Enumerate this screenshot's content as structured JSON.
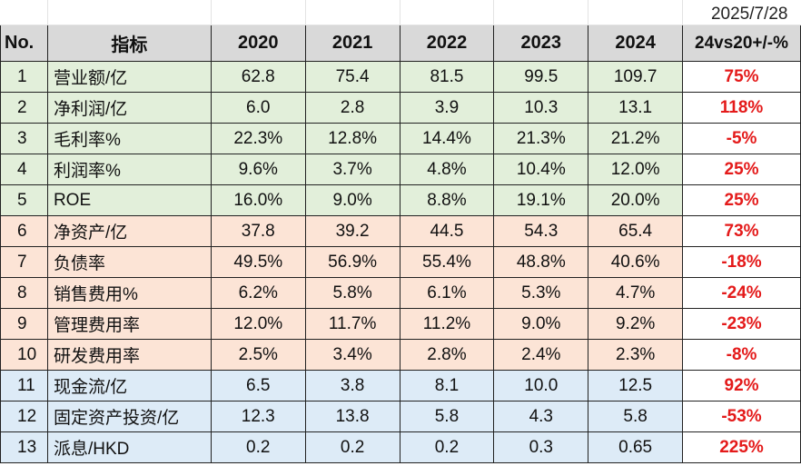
{
  "date": "2025/7/28",
  "header": {
    "no": "No.",
    "metric": "指标",
    "years": [
      "2020",
      "2021",
      "2022",
      "2023",
      "2024"
    ],
    "change": "24vs20+/-%"
  },
  "rows": [
    {
      "no": "1",
      "name": "营业额/亿",
      "values": [
        "62.8",
        "75.4",
        "81.5",
        "99.5",
        "109.7"
      ],
      "change": "75%",
      "group": "green"
    },
    {
      "no": "2",
      "name": "净利润/亿",
      "values": [
        "6.0",
        "2.8",
        "3.9",
        "10.3",
        "13.1"
      ],
      "change": "118%",
      "group": "green"
    },
    {
      "no": "3",
      "name": "毛利率%",
      "values": [
        "22.3%",
        "12.8%",
        "14.4%",
        "21.3%",
        "21.2%"
      ],
      "change": "-5%",
      "group": "green"
    },
    {
      "no": "4",
      "name": "利润率%",
      "values": [
        "9.6%",
        "3.7%",
        "4.8%",
        "10.4%",
        "12.0%"
      ],
      "change": "25%",
      "group": "green"
    },
    {
      "no": "5",
      "name": "ROE",
      "values": [
        "16.0%",
        "9.0%",
        "8.8%",
        "19.1%",
        "20.0%"
      ],
      "change": "25%",
      "group": "green"
    },
    {
      "no": "6",
      "name": "净资产/亿",
      "values": [
        "37.8",
        "39.2",
        "44.5",
        "54.3",
        "65.4"
      ],
      "change": "73%",
      "group": "peach"
    },
    {
      "no": "7",
      "name": "负债率",
      "values": [
        "49.5%",
        "56.9%",
        "55.4%",
        "48.8%",
        "40.6%"
      ],
      "change": "-18%",
      "group": "peach"
    },
    {
      "no": "8",
      "name": "销售费用%",
      "values": [
        "6.2%",
        "5.8%",
        "6.1%",
        "5.3%",
        "4.7%"
      ],
      "change": "-24%",
      "group": "peach"
    },
    {
      "no": "9",
      "name": "管理费用率",
      "values": [
        "12.0%",
        "11.7%",
        "11.2%",
        "9.0%",
        "9.2%"
      ],
      "change": "-23%",
      "group": "peach"
    },
    {
      "no": "10",
      "name": "研发费用率",
      "values": [
        "2.5%",
        "3.4%",
        "2.8%",
        "2.4%",
        "2.3%"
      ],
      "change": "-8%",
      "group": "peach"
    },
    {
      "no": "11",
      "name": "现金流/亿",
      "values": [
        "6.5",
        "3.8",
        "8.1",
        "10.0",
        "12.5"
      ],
      "change": "92%",
      "group": "blue"
    },
    {
      "no": "12",
      "name": "固定资产投资/亿",
      "values": [
        "12.3",
        "13.8",
        "5.8",
        "4.3",
        "5.8"
      ],
      "change": "-53%",
      "group": "blue"
    },
    {
      "no": "13",
      "name": "派息/HKD",
      "values": [
        "0.2",
        "0.2",
        "0.2",
        "0.3",
        "0.65"
      ],
      "change": "225%",
      "group": "blue"
    }
  ],
  "colors": {
    "green": "#e2efda",
    "peach": "#fce4d6",
    "blue": "#ddebf7",
    "header": "#d9d9d9",
    "change_text": "#e41a1a"
  }
}
